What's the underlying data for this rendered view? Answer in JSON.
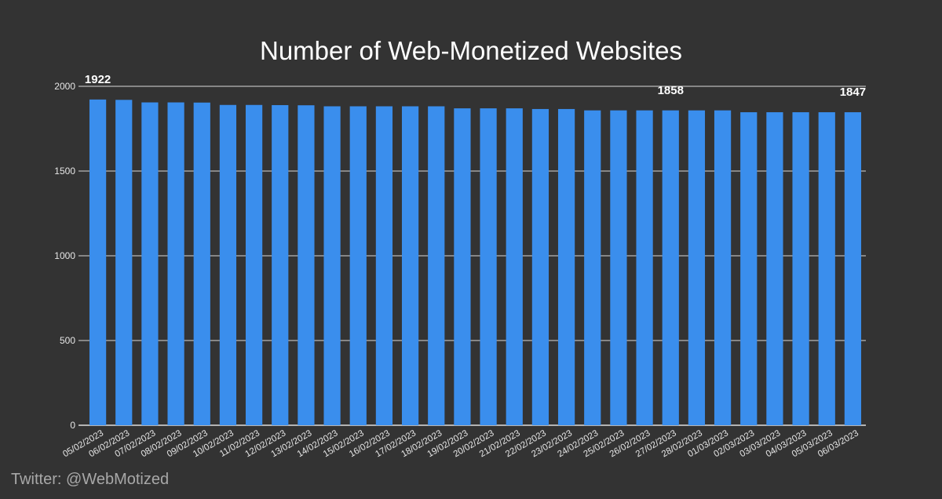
{
  "chart_data": {
    "type": "bar",
    "title": "Number of Web-Monetized Websites",
    "xlabel": "",
    "ylabel": "",
    "ylim": [
      0,
      2000
    ],
    "yticks": [
      0,
      500,
      1000,
      1500,
      2000
    ],
    "grid": true,
    "legend": "none",
    "bar_color": "#3a8eed",
    "categories": [
      "05/02/2023",
      "06/02/2023",
      "07/02/2023",
      "08/02/2023",
      "09/02/2023",
      "10/02/2023",
      "11/02/2023",
      "12/02/2023",
      "13/02/2023",
      "14/02/2023",
      "15/02/2023",
      "16/02/2023",
      "17/02/2023",
      "18/02/2023",
      "19/02/2023",
      "20/02/2023",
      "21/02/2023",
      "22/02/2023",
      "23/02/2023",
      "24/02/2023",
      "25/02/2023",
      "26/02/2023",
      "27/02/2023",
      "28/02/2023",
      "01/03/2023",
      "02/03/2023",
      "03/03/2023",
      "04/03/2023",
      "05/03/2023",
      "06/03/2023"
    ],
    "values": [
      1922,
      1920,
      1905,
      1905,
      1904,
      1890,
      1890,
      1889,
      1888,
      1882,
      1882,
      1882,
      1882,
      1882,
      1870,
      1870,
      1870,
      1866,
      1866,
      1858,
      1858,
      1858,
      1858,
      1858,
      1858,
      1847,
      1847,
      1847,
      1847,
      1847
    ],
    "annotations": [
      {
        "index": 0,
        "text": "1922"
      },
      {
        "index": 22,
        "text": "1858"
      },
      {
        "index": 29,
        "text": "1847"
      }
    ]
  },
  "footer": {
    "credit": "Twitter: @WebMotized"
  }
}
